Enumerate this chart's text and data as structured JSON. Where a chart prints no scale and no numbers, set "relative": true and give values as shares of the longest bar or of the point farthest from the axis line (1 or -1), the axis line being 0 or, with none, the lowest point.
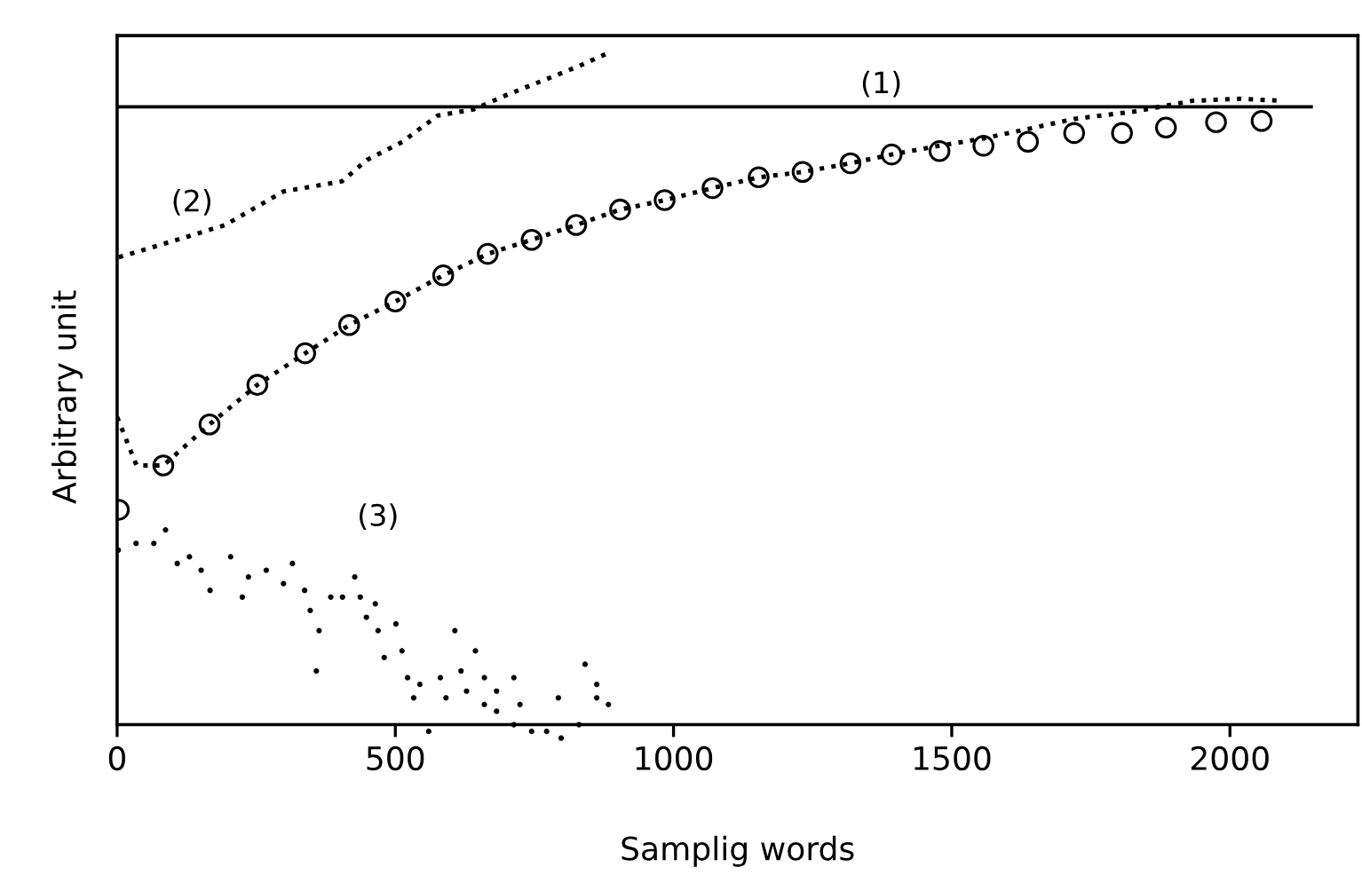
{
  "chart_data": {
    "type": "line",
    "relative": true,
    "xlabel": "Samplig words",
    "ylabel": "Arbitrary unit",
    "xlim": [
      0,
      2230
    ],
    "xticks": [
      0,
      500,
      1000,
      1500,
      2000
    ],
    "grid": false,
    "legend": false,
    "series": [
      {
        "name": "(1)",
        "color": "#000000",
        "line_style": "solid",
        "x": [
          0,
          2146
        ],
        "values": [
          0.92,
          0.92
        ]
      },
      {
        "name": "(2)",
        "color": "#000000",
        "line_style": "dotted",
        "x": [
          3,
          108,
          194,
          299,
          404,
          449,
          513,
          576,
          640,
          704,
          768,
          831,
          882
        ],
        "values": [
          0.696,
          0.722,
          0.744,
          0.794,
          0.809,
          0.841,
          0.868,
          0.907,
          0.916,
          0.939,
          0.96,
          0.981,
          1.0
        ]
      },
      {
        "color": "#000000",
        "line_style": "dotted",
        "x": [
          0,
          35,
          83,
          166,
          252,
          338,
          417,
          500,
          586,
          666,
          745,
          825,
          904,
          984,
          1070,
          1153,
          1232,
          1318,
          1392,
          1478,
          1557,
          1637,
          1720,
          1828,
          1933,
          2019,
          2092
        ],
        "values": [
          0.458,
          0.386,
          0.386,
          0.447,
          0.506,
          0.553,
          0.595,
          0.63,
          0.669,
          0.701,
          0.722,
          0.744,
          0.767,
          0.781,
          0.799,
          0.815,
          0.823,
          0.836,
          0.849,
          0.862,
          0.873,
          0.887,
          0.902,
          0.913,
          0.929,
          0.932,
          0.929
        ]
      },
      {
        "type": "scatter",
        "marker": "circle",
        "color": "#000000",
        "x": [
          3,
          83,
          166,
          252,
          338,
          417,
          500,
          586,
          666,
          745,
          825,
          904,
          984,
          1070,
          1153,
          1232,
          1318,
          1392,
          1478,
          1557,
          1637,
          1720,
          1806,
          1885,
          1975,
          2057
        ],
        "values": [
          0.32,
          0.386,
          0.447,
          0.506,
          0.553,
          0.595,
          0.63,
          0.669,
          0.701,
          0.722,
          0.744,
          0.767,
          0.781,
          0.799,
          0.815,
          0.823,
          0.836,
          0.849,
          0.854,
          0.862,
          0.868,
          0.881,
          0.881,
          0.889,
          0.897,
          0.899
        ]
      },
      {
        "name": "(3)",
        "type": "scatter",
        "color": "#000000",
        "x": [
          2,
          34,
          66,
          87,
          108,
          130,
          151,
          167,
          204,
          225,
          236,
          268,
          299,
          315,
          337,
          347,
          363,
          358,
          384,
          405,
          427,
          437,
          448,
          464,
          469,
          501,
          480,
          512,
          522,
          544,
          533,
          560,
          581,
          591,
          607,
          618,
          628,
          644,
          660,
          660,
          682,
          682,
          713,
          724,
          713,
          745,
          772,
          793,
          798,
          830,
          841,
          862,
          862,
          883
        ],
        "values": [
          0.26,
          0.27,
          0.27,
          0.29,
          0.24,
          0.25,
          0.23,
          0.2,
          0.25,
          0.19,
          0.22,
          0.23,
          0.21,
          0.24,
          0.2,
          0.17,
          0.14,
          0.08,
          0.19,
          0.19,
          0.22,
          0.19,
          0.16,
          0.18,
          0.14,
          0.15,
          0.1,
          0.11,
          0.07,
          0.06,
          0.04,
          -0.01,
          0.07,
          0.04,
          0.14,
          0.08,
          0.05,
          0.11,
          0.07,
          0.03,
          0.05,
          0.02,
          0.07,
          0.03,
          0.0,
          -0.01,
          -0.01,
          0.04,
          -0.02,
          0.0,
          0.09,
          0.06,
          0.04,
          0.03
        ]
      }
    ]
  }
}
